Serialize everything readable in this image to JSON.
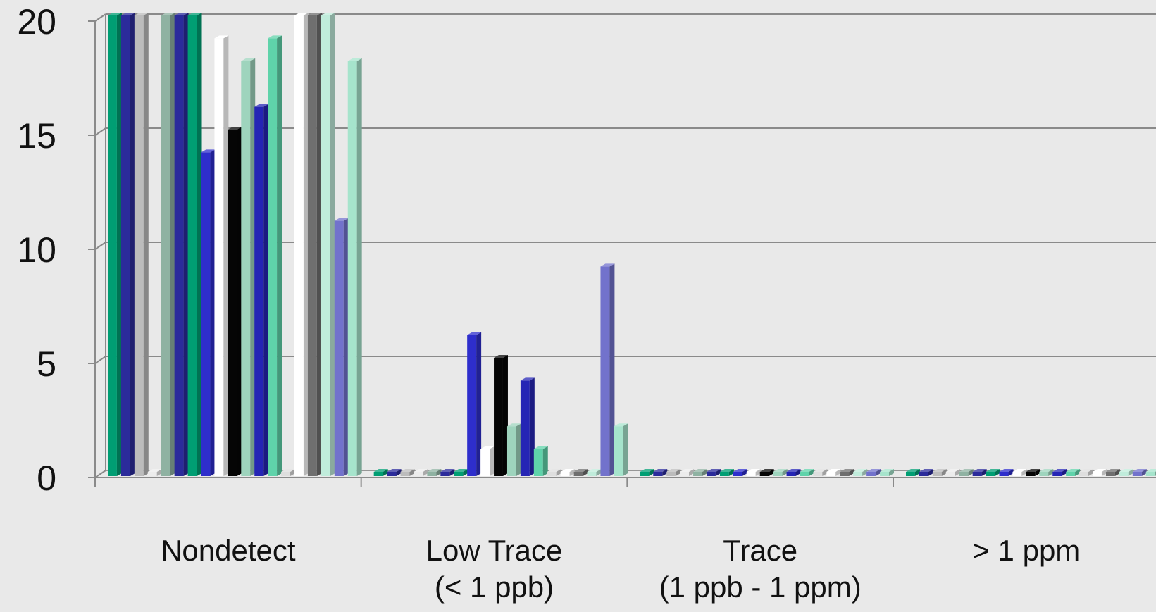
{
  "chart_data": {
    "type": "bar",
    "style": "3d-clustered-bar",
    "title": "",
    "xlabel": "",
    "ylabel": "",
    "ylim": [
      0,
      20
    ],
    "yticks": [
      "0",
      "5",
      "10",
      "15",
      "20"
    ],
    "grid": true,
    "legend": "none",
    "categories": [
      [
        "Nondetect"
      ],
      [
        "Low Trace",
        "(< 1 ppb)"
      ],
      [
        "Trace",
        "(1 ppb - 1 ppm)"
      ],
      [
        "> 1 ppm"
      ]
    ],
    "series": [
      {
        "color": "#009e73",
        "values": [
          20,
          0,
          0,
          0
        ]
      },
      {
        "color": "#2b2b9b",
        "values": [
          20,
          0,
          0,
          0
        ]
      },
      {
        "color": "#bcbcbc",
        "values": [
          20,
          0,
          0,
          0
        ]
      },
      {
        "color": "#ececec",
        "values": [
          0,
          0,
          0,
          0
        ]
      },
      {
        "color": "#8fb2a2",
        "values": [
          20,
          0,
          0,
          0
        ]
      },
      {
        "color": "#2b2b9b",
        "values": [
          20,
          0,
          0,
          0
        ]
      },
      {
        "color": "#009e73",
        "values": [
          20,
          0,
          0,
          0
        ]
      },
      {
        "color": "#2e2ecc",
        "values": [
          14,
          6,
          0,
          0
        ]
      },
      {
        "color": "#ffffff",
        "values": [
          19,
          1,
          0,
          0
        ]
      },
      {
        "color": "#050505",
        "values": [
          15,
          5,
          0,
          0
        ]
      },
      {
        "color": "#9ed4bd",
        "values": [
          18,
          2,
          0,
          0
        ]
      },
      {
        "color": "#2525b5",
        "values": [
          16,
          4,
          0,
          0
        ]
      },
      {
        "color": "#5fd3aa",
        "values": [
          19,
          1,
          0,
          0
        ]
      },
      {
        "color": "#dedede",
        "values": [
          0,
          0,
          0,
          0
        ]
      },
      {
        "color": "#ffffff",
        "values": [
          20,
          0,
          0,
          0
        ]
      },
      {
        "color": "#6f6f6f",
        "values": [
          20,
          0,
          0,
          0
        ]
      },
      {
        "color": "#c0ecdb",
        "values": [
          20,
          0,
          0,
          0
        ]
      },
      {
        "color": "#7272cc",
        "values": [
          11,
          9,
          0,
          0
        ]
      },
      {
        "color": "#a6e4cc",
        "values": [
          18,
          2,
          0,
          0
        ]
      }
    ]
  }
}
